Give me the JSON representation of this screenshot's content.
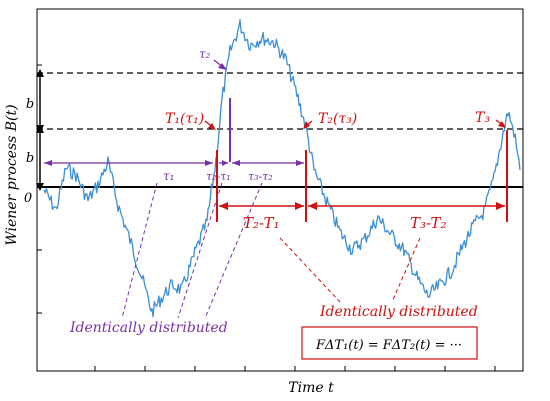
{
  "axes": {
    "xlabel": "Time t",
    "ylabel": "Wiener process B(t)",
    "zero_label": "0",
    "b_label_1": "b",
    "b_label_2": "b"
  },
  "markers": {
    "T1": "T₁(τ₁)",
    "T2": "T₂(τ₃)",
    "T3": "T₃",
    "tau2": "τ₂"
  },
  "intervals": {
    "tau1": "τ₁",
    "tau2_minus_tau1": "τ₂-τ₁",
    "tau3_minus_tau2": "τ₃-τ₂",
    "T2_minus_T1": "T₂-T₁",
    "T3_minus_T2": "T₃-T₂"
  },
  "annotations": {
    "identically_distributed_red": "Identically distributed",
    "identically_distributed_purple": "Identically distributed",
    "formula": "FΔT₁(t) = FΔT₂(t) = ···"
  },
  "colors": {
    "path": "#3a8fd6",
    "red": "#d01010",
    "purple": "#7a2fa8",
    "axis": "#000000"
  }
}
